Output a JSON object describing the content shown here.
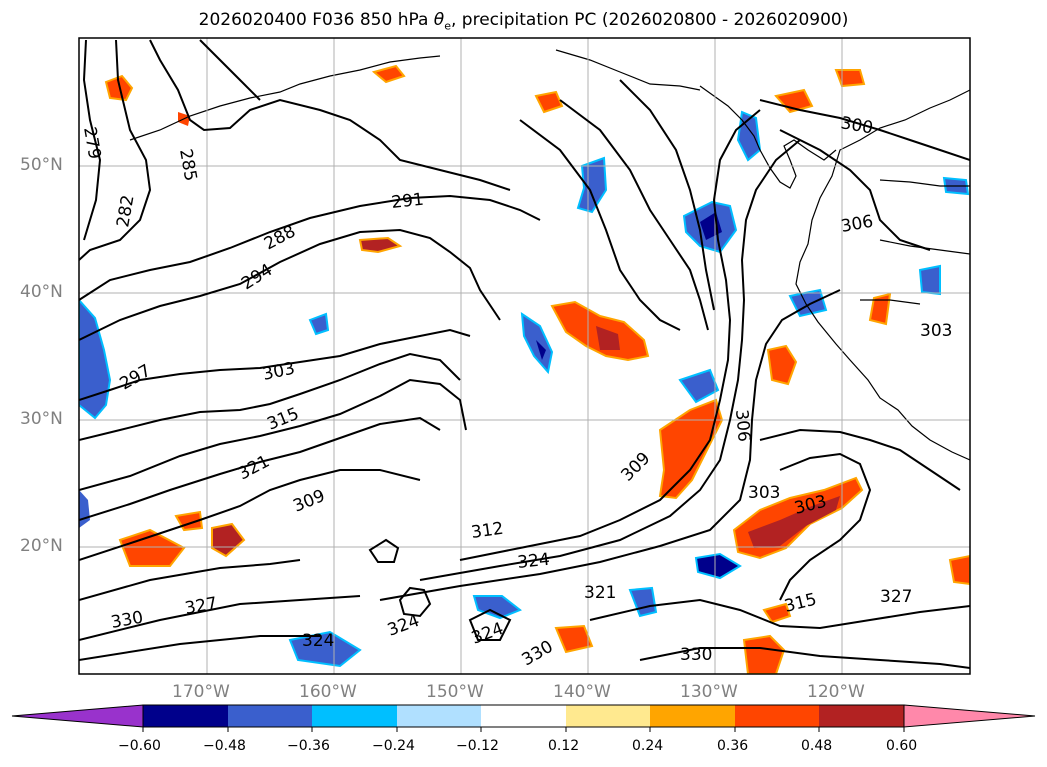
{
  "title": {
    "prefix": "2026020400 F036 850 hPa ",
    "symbol": "θ",
    "subscript": "e",
    "suffix": ", precipitation PC (2026020800 - 2026020900)"
  },
  "lat_labels": [
    "50°N",
    "40°N",
    "30°N",
    "20°N"
  ],
  "lon_labels": [
    "170°W",
    "160°W",
    "150°W",
    "140°W",
    "130°W",
    "120°W"
  ],
  "colorbar": {
    "ticks": [
      "−0.60",
      "−0.48",
      "−0.36",
      "−0.24",
      "−0.12",
      "0.12",
      "0.24",
      "0.36",
      "0.48",
      "0.60"
    ],
    "under_color": "#9932cc",
    "over_color": "#ff88aa",
    "colors": [
      "#00008b",
      "#3a5fcd",
      "#00bfff",
      "#b0e0ff",
      "#ffffff",
      "#ffff99",
      "#ffa500",
      "#ff4500",
      "#b22222"
    ]
  },
  "contour_labels": [
    "279",
    "282",
    "285",
    "288",
    "291",
    "294",
    "297",
    "303",
    "315",
    "321",
    "309",
    "330",
    "327",
    "324",
    "312",
    "300",
    "306"
  ],
  "colors": {
    "frame": "#000000",
    "grid": "#b0b0b0",
    "contour": "#000000",
    "axis_label": "#808080"
  }
}
